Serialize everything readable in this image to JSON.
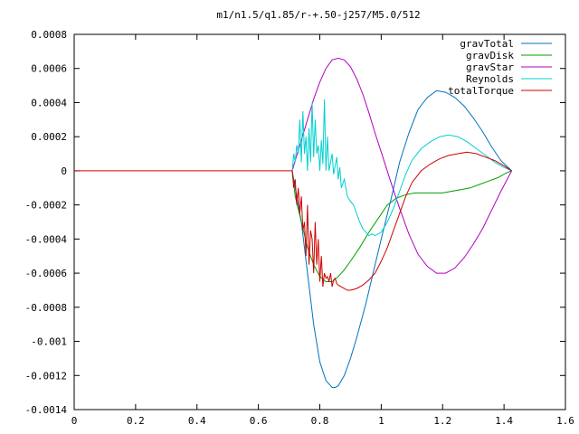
{
  "chart_data": {
    "type": "line",
    "title": "m1/n1.5/q1.85/r-+.50-j257/M5.0/512",
    "xlabel": "",
    "ylabel": "",
    "xlim": [
      0,
      1.6
    ],
    "ylim": [
      -0.0014,
      0.0008
    ],
    "grid": false,
    "legend_position": "top-right",
    "x_ticks": [
      "0",
      "0.2",
      "0.4",
      "0.6",
      "0.8",
      "1",
      "1.2",
      "1.4",
      "1.6"
    ],
    "y_ticks": [
      "0.0008",
      "0.0006",
      "0.0004",
      "0.0002",
      "0",
      "-0.0002",
      "-0.0004",
      "-0.0006",
      "-0.0008",
      "-0.001",
      "-0.0012",
      "-0.0014"
    ],
    "series": [
      {
        "name": "gravTotal",
        "color": "#0072bd",
        "x": [
          0.71,
          0.72,
          0.74,
          0.76,
          0.78,
          0.8,
          0.82,
          0.84,
          0.85,
          0.86,
          0.88,
          0.9,
          0.92,
          0.95,
          0.98,
          1.0,
          1.03,
          1.06,
          1.09,
          1.12,
          1.15,
          1.18,
          1.21,
          1.24,
          1.27,
          1.3,
          1.33,
          1.36,
          1.39,
          1.425
        ],
        "y": [
          0,
          -0.0001,
          -0.0003,
          -0.0006,
          -0.0009,
          -0.00112,
          -0.00123,
          -0.00127,
          -0.00127,
          -0.00126,
          -0.0012,
          -0.0011,
          -0.00098,
          -0.00078,
          -0.00055,
          -0.0004,
          -0.00018,
          5e-05,
          0.00022,
          0.00036,
          0.00043,
          0.00047,
          0.00046,
          0.00043,
          0.00038,
          0.00031,
          0.00023,
          0.00014,
          6e-05,
          0
        ]
      },
      {
        "name": "gravDisk",
        "color": "#00a000",
        "x": [
          0.71,
          0.72,
          0.74,
          0.76,
          0.78,
          0.8,
          0.82,
          0.84,
          0.86,
          0.88,
          0.9,
          0.93,
          0.96,
          0.99,
          1.02,
          1.05,
          1.08,
          1.11,
          1.14,
          1.17,
          1.2,
          1.23,
          1.26,
          1.29,
          1.32,
          1.35,
          1.38,
          1.41,
          1.425
        ],
        "y": [
          0,
          -0.00015,
          -0.0003,
          -0.00045,
          -0.00055,
          -0.00062,
          -0.00065,
          -0.00065,
          -0.00062,
          -0.00058,
          -0.00053,
          -0.00045,
          -0.00036,
          -0.00028,
          -0.0002,
          -0.00016,
          -0.00014,
          -0.00013,
          -0.00013,
          -0.00013,
          -0.00013,
          -0.00012,
          -0.00011,
          -0.0001,
          -8e-05,
          -6e-05,
          -4e-05,
          -1e-05,
          0
        ]
      },
      {
        "name": "gravStar",
        "color": "#b000c0",
        "x": [
          0.71,
          0.72,
          0.74,
          0.76,
          0.78,
          0.8,
          0.82,
          0.84,
          0.86,
          0.88,
          0.9,
          0.92,
          0.94,
          0.96,
          0.98,
          1.0,
          1.03,
          1.06,
          1.09,
          1.12,
          1.15,
          1.18,
          1.21,
          1.24,
          1.27,
          1.3,
          1.33,
          1.36,
          1.39,
          1.425
        ],
        "y": [
          0,
          6e-05,
          0.00018,
          0.0003,
          0.00042,
          0.00052,
          0.0006,
          0.00065,
          0.00066,
          0.00065,
          0.00061,
          0.00054,
          0.00045,
          0.00034,
          0.00022,
          0.00011,
          -6e-05,
          -0.00022,
          -0.00037,
          -0.00049,
          -0.00056,
          -0.0006,
          -0.0006,
          -0.00057,
          -0.00051,
          -0.00043,
          -0.00034,
          -0.00023,
          -0.00012,
          0
        ]
      },
      {
        "name": "Reynolds",
        "color": "#00d0d0",
        "x": [
          0.71,
          0.715,
          0.72,
          0.725,
          0.73,
          0.735,
          0.74,
          0.745,
          0.75,
          0.755,
          0.76,
          0.765,
          0.77,
          0.775,
          0.78,
          0.785,
          0.79,
          0.795,
          0.8,
          0.805,
          0.81,
          0.815,
          0.82,
          0.825,
          0.83,
          0.835,
          0.84,
          0.845,
          0.85,
          0.855,
          0.86,
          0.865,
          0.87,
          0.88,
          0.89,
          0.9,
          0.91,
          0.92,
          0.93,
          0.94,
          0.95,
          0.96,
          0.97,
          0.98,
          1.0,
          1.02,
          1.04,
          1.06,
          1.08,
          1.1,
          1.13,
          1.16,
          1.19,
          1.22,
          1.25,
          1.28,
          1.31,
          1.34,
          1.37,
          1.4,
          1.425
        ],
        "y": [
          0,
          0.0001,
          5e-05,
          0.00015,
          0.0001,
          0.0003,
          5e-05,
          0.00035,
          0.0001,
          0.0002,
          0.0,
          0.00025,
          5e-05,
          0.0004,
          8e-05,
          0.0003,
          0.0001,
          0.00015,
          0.0,
          0.00018,
          4e-05,
          0.00042,
          0.0,
          0.0002,
          0.0,
          5e-05,
          0.0001,
          -2e-05,
          3e-05,
          8e-05,
          -5e-05,
          2e-05,
          -0.0001,
          -5e-05,
          -0.00015,
          -0.00018,
          -0.0002,
          -0.00025,
          -0.0003,
          -0.00034,
          -0.00036,
          -0.00038,
          -0.00037,
          -0.00038,
          -0.00036,
          -0.0003,
          -0.00022,
          -0.00012,
          -2e-05,
          6e-05,
          0.00013,
          0.00017,
          0.0002,
          0.00021,
          0.0002,
          0.00017,
          0.00013,
          9e-05,
          5e-05,
          2e-05,
          0
        ]
      },
      {
        "name": "totalTorque",
        "color": "#d00000",
        "x": [
          0.0,
          0.7,
          0.71,
          0.715,
          0.72,
          0.725,
          0.73,
          0.735,
          0.74,
          0.745,
          0.75,
          0.755,
          0.76,
          0.765,
          0.77,
          0.775,
          0.78,
          0.785,
          0.79,
          0.795,
          0.8,
          0.805,
          0.81,
          0.815,
          0.82,
          0.825,
          0.83,
          0.835,
          0.84,
          0.845,
          0.85,
          0.855,
          0.86,
          0.87,
          0.88,
          0.89,
          0.9,
          0.92,
          0.94,
          0.96,
          0.98,
          1.0,
          1.02,
          1.04,
          1.06,
          1.08,
          1.1,
          1.13,
          1.16,
          1.19,
          1.22,
          1.25,
          1.28,
          1.31,
          1.34,
          1.37,
          1.4,
          1.425
        ],
        "y": [
          0,
          0,
          0,
          -0.0001,
          -5e-05,
          -0.0002,
          -0.0001,
          -0.00025,
          -0.00015,
          -0.00035,
          -0.0003,
          -0.0005,
          -0.0002,
          -0.00055,
          -0.00035,
          -0.0004,
          -0.0006,
          -0.0003,
          -0.00055,
          -0.0004,
          -0.00065,
          -0.0005,
          -0.00068,
          -0.0006,
          -0.00063,
          -0.00062,
          -0.00065,
          -0.0006,
          -0.00068,
          -0.00064,
          -0.00063,
          -0.00066,
          -0.00067,
          -0.00068,
          -0.00069,
          -0.0007,
          -0.0007,
          -0.00069,
          -0.00067,
          -0.00064,
          -0.0006,
          -0.00053,
          -0.00045,
          -0.00035,
          -0.00025,
          -0.00015,
          -7e-05,
          0.0,
          4e-05,
          7e-05,
          9e-05,
          0.0001,
          0.00011,
          0.0001,
          8e-05,
          6e-05,
          3e-05,
          0
        ]
      }
    ]
  }
}
